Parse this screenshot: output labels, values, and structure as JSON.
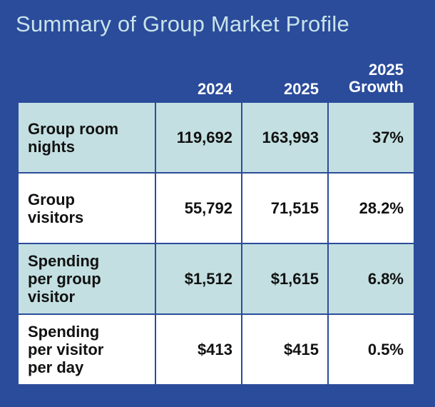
{
  "title": "Summary of Group Market Profile",
  "headers": {
    "col_2024": "2024",
    "col_2025": "2025",
    "col_growth_line1": "2025",
    "col_growth_line2": "Growth"
  },
  "rows": [
    {
      "label_lines": [
        "Group room",
        "nights"
      ],
      "v2024": "119,692",
      "v2025": "163,993",
      "growth": "37%"
    },
    {
      "label_lines": [
        "Group",
        "visitors"
      ],
      "v2024": "55,792",
      "v2025": "71,515",
      "growth": "28.2%"
    },
    {
      "label_lines": [
        "Spending",
        "per group",
        "visitor"
      ],
      "v2024": "$1,512",
      "v2025": "$1,615",
      "growth": "6.8%"
    },
    {
      "label_lines": [
        "Spending",
        "per visitor",
        "per day"
      ],
      "v2024": "$413",
      "v2025": "$415",
      "growth": "0.5%"
    }
  ],
  "colors": {
    "background": "#2b4c9b",
    "title": "#c9e3ea",
    "shaded_row": "#c3dfe1",
    "plain_row": "#ffffff"
  }
}
